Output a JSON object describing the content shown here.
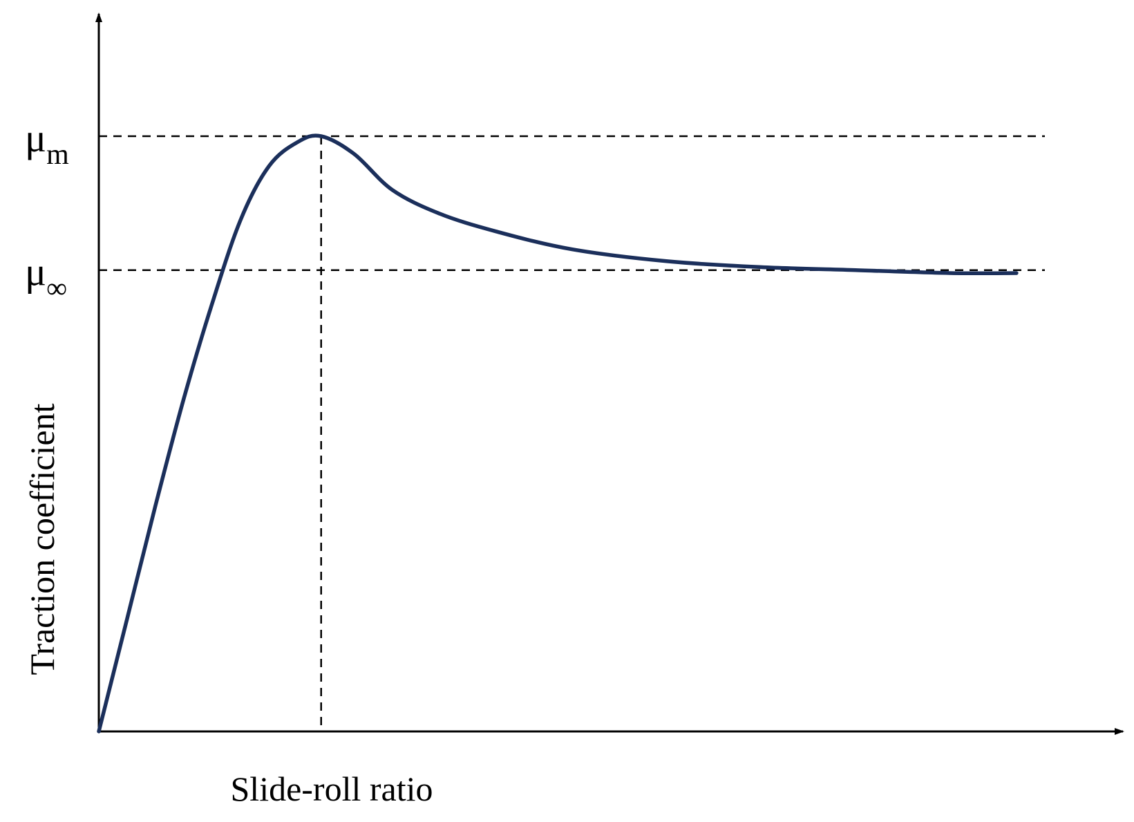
{
  "chart_data": {
    "type": "line",
    "xlabel": "Slide-roll ratio",
    "ylabel": "Traction coefficient",
    "xlim": [
      0,
      1
    ],
    "ylim": [
      0,
      1
    ],
    "grid": false,
    "reference_lines": [
      {
        "axis": "y",
        "value": 1.0,
        "label_main": "μ",
        "label_sub": "m"
      },
      {
        "axis": "y",
        "value": 0.775,
        "label_main": "μ",
        "label_sub": "∞"
      },
      {
        "axis": "x",
        "value": 0.235
      }
    ],
    "series": [
      {
        "color": "#1b2f5b",
        "x": [
          0,
          0.03,
          0.06,
          0.09,
          0.12,
          0.15,
          0.18,
          0.21,
          0.235,
          0.27,
          0.31,
          0.36,
          0.42,
          0.5,
          0.6,
          0.7,
          0.8,
          0.9,
          0.97
        ],
        "y": [
          0,
          0.19,
          0.38,
          0.56,
          0.72,
          0.86,
          0.95,
          0.99,
          1.0,
          0.97,
          0.91,
          0.87,
          0.84,
          0.81,
          0.79,
          0.78,
          0.775,
          0.77,
          0.77
        ]
      }
    ]
  }
}
